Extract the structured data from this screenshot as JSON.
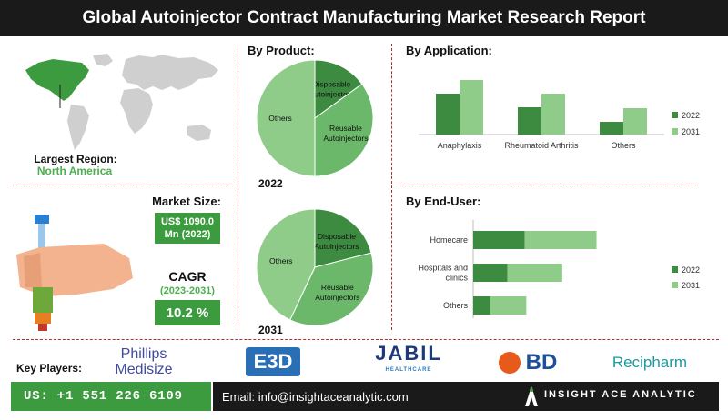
{
  "title": "Global Autoinjector Contract Manufacturing Market Research Report",
  "region": {
    "label": "Largest Region:",
    "value": "North America"
  },
  "market_size": {
    "label": "Market Size:",
    "value_line1": "US$ 1090.0",
    "value_line2": "Mn (2022)"
  },
  "cagr": {
    "label": "CAGR",
    "period": "(2023-2031)",
    "value": "10.2 %"
  },
  "by_product": {
    "heading": "By Product:"
  },
  "by_application": {
    "heading": "By Application:"
  },
  "by_end_user": {
    "heading": "By End-User:"
  },
  "key_players": {
    "label": "Key Players:",
    "logos": [
      "Phillips Medisize",
      "E3D",
      "JABIL",
      "HEALTHCARE",
      "BD",
      "Recipharm"
    ]
  },
  "footer": {
    "phone": "US: +1 551 226 6109",
    "email": "Email: info@insightaceanalytic.com",
    "brand": "INSIGHT ACE ANALYTIC"
  },
  "colors": {
    "dark_green": "#3d8b40",
    "light_green": "#8fcc8a",
    "mid_green": "#6bb86b",
    "title_bg": "#1a1a1a",
    "divider_red": "#b03030"
  },
  "chart_data": [
    {
      "type": "pie",
      "year_label": "2022",
      "categories": [
        "Disposable Autoinjectors",
        "Reusable Autoinjectors",
        "Others"
      ],
      "values": [
        15,
        35,
        50
      ]
    },
    {
      "type": "pie",
      "year_label": "2031",
      "categories": [
        "Disposable Autoinjectors",
        "Reusable Autoinjectors",
        "Others"
      ],
      "values": [
        21,
        36,
        43
      ]
    },
    {
      "type": "bar",
      "categories": [
        "Anaphylaxis",
        "Rheumatoid Arthritis",
        "Others"
      ],
      "series": [
        {
          "name": "2022",
          "values": [
            45,
            30,
            14
          ]
        },
        {
          "name": "2031",
          "values": [
            60,
            45,
            29
          ]
        }
      ],
      "ylim": [
        0,
        70
      ]
    },
    {
      "type": "bar",
      "orientation": "horizontal",
      "stacked": true,
      "categories": [
        "Homecare",
        "Hospitals and clinics",
        "Others"
      ],
      "series": [
        {
          "name": "2022",
          "values": [
            30,
            20,
            10
          ]
        },
        {
          "name": "2031",
          "values": [
            42,
            32,
            21
          ]
        }
      ],
      "xlim": [
        0,
        85
      ]
    }
  ]
}
